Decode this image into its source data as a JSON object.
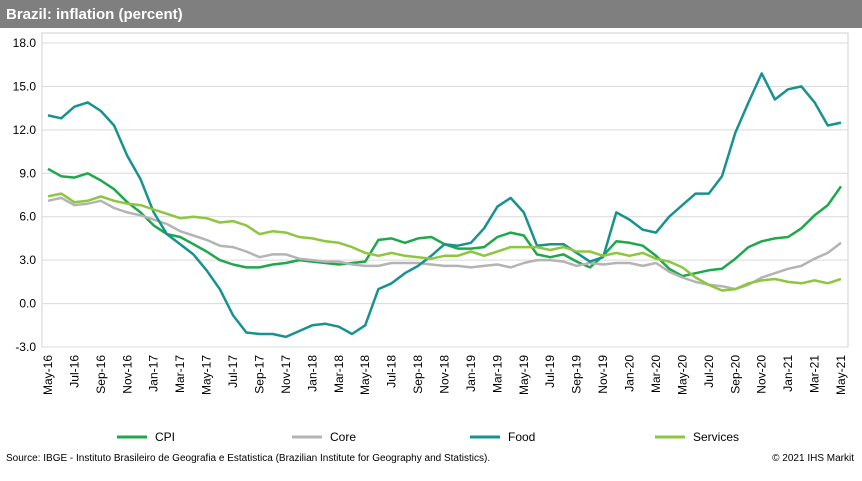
{
  "chart_data": {
    "type": "line",
    "title": "Brazil: inflation (percent)",
    "categories": [
      "May-16",
      null,
      "Jul-16",
      null,
      "Sep-16",
      null,
      "Nov-16",
      null,
      "Jan-17",
      null,
      "Mar-17",
      null,
      "May-17",
      null,
      "Jul-17",
      null,
      "Sep-17",
      null,
      "Nov-17",
      null,
      "Jan-18",
      null,
      "Mar-18",
      null,
      "May-18",
      null,
      "Jul-18",
      null,
      "Sep-18",
      null,
      "Nov-18",
      null,
      "Jan-19",
      null,
      "Mar-19",
      null,
      "May-19",
      null,
      "Jul-19",
      null,
      "Sep-19",
      null,
      "Nov-19",
      null,
      "Jan-20",
      null,
      "Mar-20",
      null,
      "May-20",
      null,
      "Jul-20",
      null,
      "Sep-20",
      null,
      "Nov-20",
      null,
      "Jan-21",
      null,
      "Mar-21",
      null,
      "May-21"
    ],
    "series": [
      {
        "name": "CPI",
        "color": "#1ea84b",
        "values": [
          9.3,
          8.8,
          8.7,
          9.0,
          8.5,
          7.9,
          7.0,
          6.3,
          5.4,
          4.8,
          4.6,
          4.1,
          3.6,
          3.0,
          2.7,
          2.5,
          2.5,
          2.7,
          2.8,
          3.0,
          2.9,
          2.8,
          2.7,
          2.8,
          2.9,
          4.4,
          4.5,
          4.2,
          4.5,
          4.6,
          4.1,
          3.8,
          3.8,
          3.9,
          4.6,
          4.9,
          4.7,
          3.4,
          3.2,
          3.4,
          2.9,
          2.5,
          3.3,
          4.3,
          4.2,
          4.0,
          3.3,
          2.4,
          1.9,
          2.1,
          2.3,
          2.4,
          3.1,
          3.9,
          4.3,
          4.5,
          4.6,
          5.2,
          6.1,
          6.8,
          8.1
        ]
      },
      {
        "name": "Core",
        "color": "#b4b4b4",
        "values": [
          7.1,
          7.3,
          6.8,
          6.9,
          7.1,
          6.6,
          6.3,
          6.1,
          5.8,
          5.5,
          5.0,
          4.7,
          4.4,
          4.0,
          3.9,
          3.6,
          3.2,
          3.4,
          3.4,
          3.1,
          3.0,
          2.9,
          2.9,
          2.7,
          2.6,
          2.6,
          2.8,
          2.8,
          2.8,
          2.7,
          2.6,
          2.6,
          2.5,
          2.6,
          2.7,
          2.5,
          2.8,
          3.0,
          3.0,
          2.9,
          2.6,
          2.8,
          2.7,
          2.8,
          2.8,
          2.6,
          2.8,
          2.2,
          1.8,
          1.5,
          1.3,
          1.2,
          1.0,
          1.3,
          1.8,
          2.1,
          2.4,
          2.6,
          3.1,
          3.5,
          4.2
        ]
      },
      {
        "name": "Food",
        "color": "#17938f",
        "values": [
          13.0,
          12.8,
          13.6,
          13.9,
          13.3,
          12.3,
          10.2,
          8.6,
          6.3,
          4.8,
          4.1,
          3.4,
          2.3,
          1.0,
          -0.8,
          -2.0,
          -2.1,
          -2.1,
          -2.3,
          -1.9,
          -1.5,
          -1.4,
          -1.6,
          -2.1,
          -1.5,
          1.0,
          1.4,
          2.1,
          2.6,
          3.3,
          4.1,
          4.0,
          4.2,
          5.2,
          6.7,
          7.3,
          6.3,
          4.0,
          4.1,
          4.1,
          3.5,
          2.9,
          3.2,
          6.3,
          5.8,
          5.1,
          4.9,
          6.0,
          6.8,
          7.6,
          7.6,
          8.8,
          11.8,
          13.9,
          15.9,
          14.1,
          14.8,
          15.0,
          13.9,
          12.3,
          12.5
        ]
      },
      {
        "name": "Services",
        "color": "#8dc63f",
        "values": [
          7.4,
          7.6,
          7.0,
          7.1,
          7.4,
          7.1,
          6.9,
          6.8,
          6.5,
          6.2,
          5.9,
          6.0,
          5.9,
          5.6,
          5.7,
          5.4,
          4.8,
          5.0,
          4.9,
          4.6,
          4.5,
          4.3,
          4.2,
          3.9,
          3.5,
          3.3,
          3.5,
          3.3,
          3.2,
          3.1,
          3.3,
          3.3,
          3.6,
          3.3,
          3.6,
          3.9,
          3.9,
          3.9,
          3.7,
          3.9,
          3.6,
          3.6,
          3.3,
          3.5,
          3.3,
          3.5,
          3.1,
          2.9,
          2.5,
          1.8,
          1.3,
          0.9,
          1.0,
          1.4,
          1.6,
          1.7,
          1.5,
          1.4,
          1.6,
          1.4,
          1.7
        ]
      }
    ],
    "ylim": [
      -3,
      18
    ],
    "yticks": [
      {
        "value": -3,
        "label": "-3.0"
      },
      {
        "value": 0,
        "label": "0.0"
      },
      {
        "value": 3,
        "label": "3.0"
      },
      {
        "value": 6,
        "label": "6.0"
      },
      {
        "value": 9,
        "label": "9.0"
      },
      {
        "value": 12,
        "label": "12.0"
      },
      {
        "value": 15,
        "label": "15.0"
      },
      {
        "value": 18,
        "label": "18.0"
      }
    ],
    "grid": true,
    "legend": "bottom",
    "source": "Source:  IBGE - Instituto Brasileiro de Geografia e Estatistica (Brazilian Institute for Geography and Statistics).",
    "copyright": "© 2021 IHS Markit"
  }
}
